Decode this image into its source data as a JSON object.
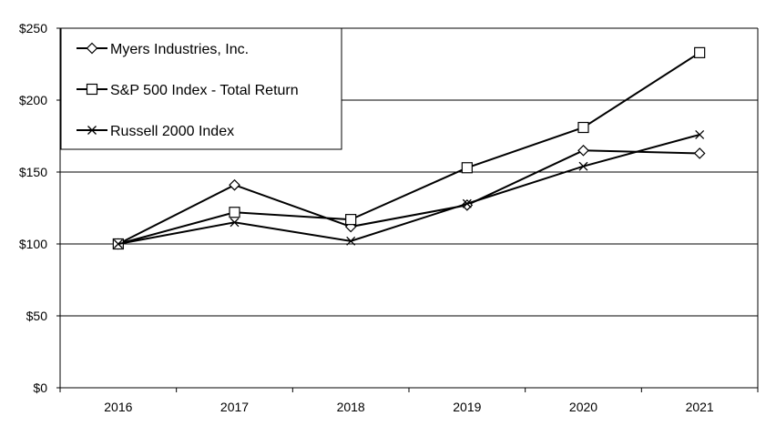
{
  "chart_data": {
    "type": "line",
    "title": "",
    "xlabel": "",
    "ylabel": "",
    "categories": [
      "2016",
      "2017",
      "2018",
      "2019",
      "2020",
      "2021"
    ],
    "y_ticks": [
      "$0",
      "$50",
      "$100",
      "$150",
      "$200",
      "$250"
    ],
    "ylim": [
      0,
      250
    ],
    "grid": "horizontal",
    "legend_position": "top-left",
    "series": [
      {
        "name": "Myers Industries, Inc.",
        "marker": "diamond",
        "values": [
          100,
          141,
          112,
          127,
          165,
          163
        ]
      },
      {
        "name": "S&P 500 Index - Total Return",
        "marker": "square",
        "values": [
          100,
          122,
          117,
          153,
          181,
          233
        ]
      },
      {
        "name": "Russell 2000 Index",
        "marker": "x",
        "values": [
          100,
          115,
          102,
          128,
          154,
          176
        ]
      }
    ],
    "colors": {
      "line": "#000000",
      "grid": "#000000",
      "background": "#ffffff"
    }
  }
}
